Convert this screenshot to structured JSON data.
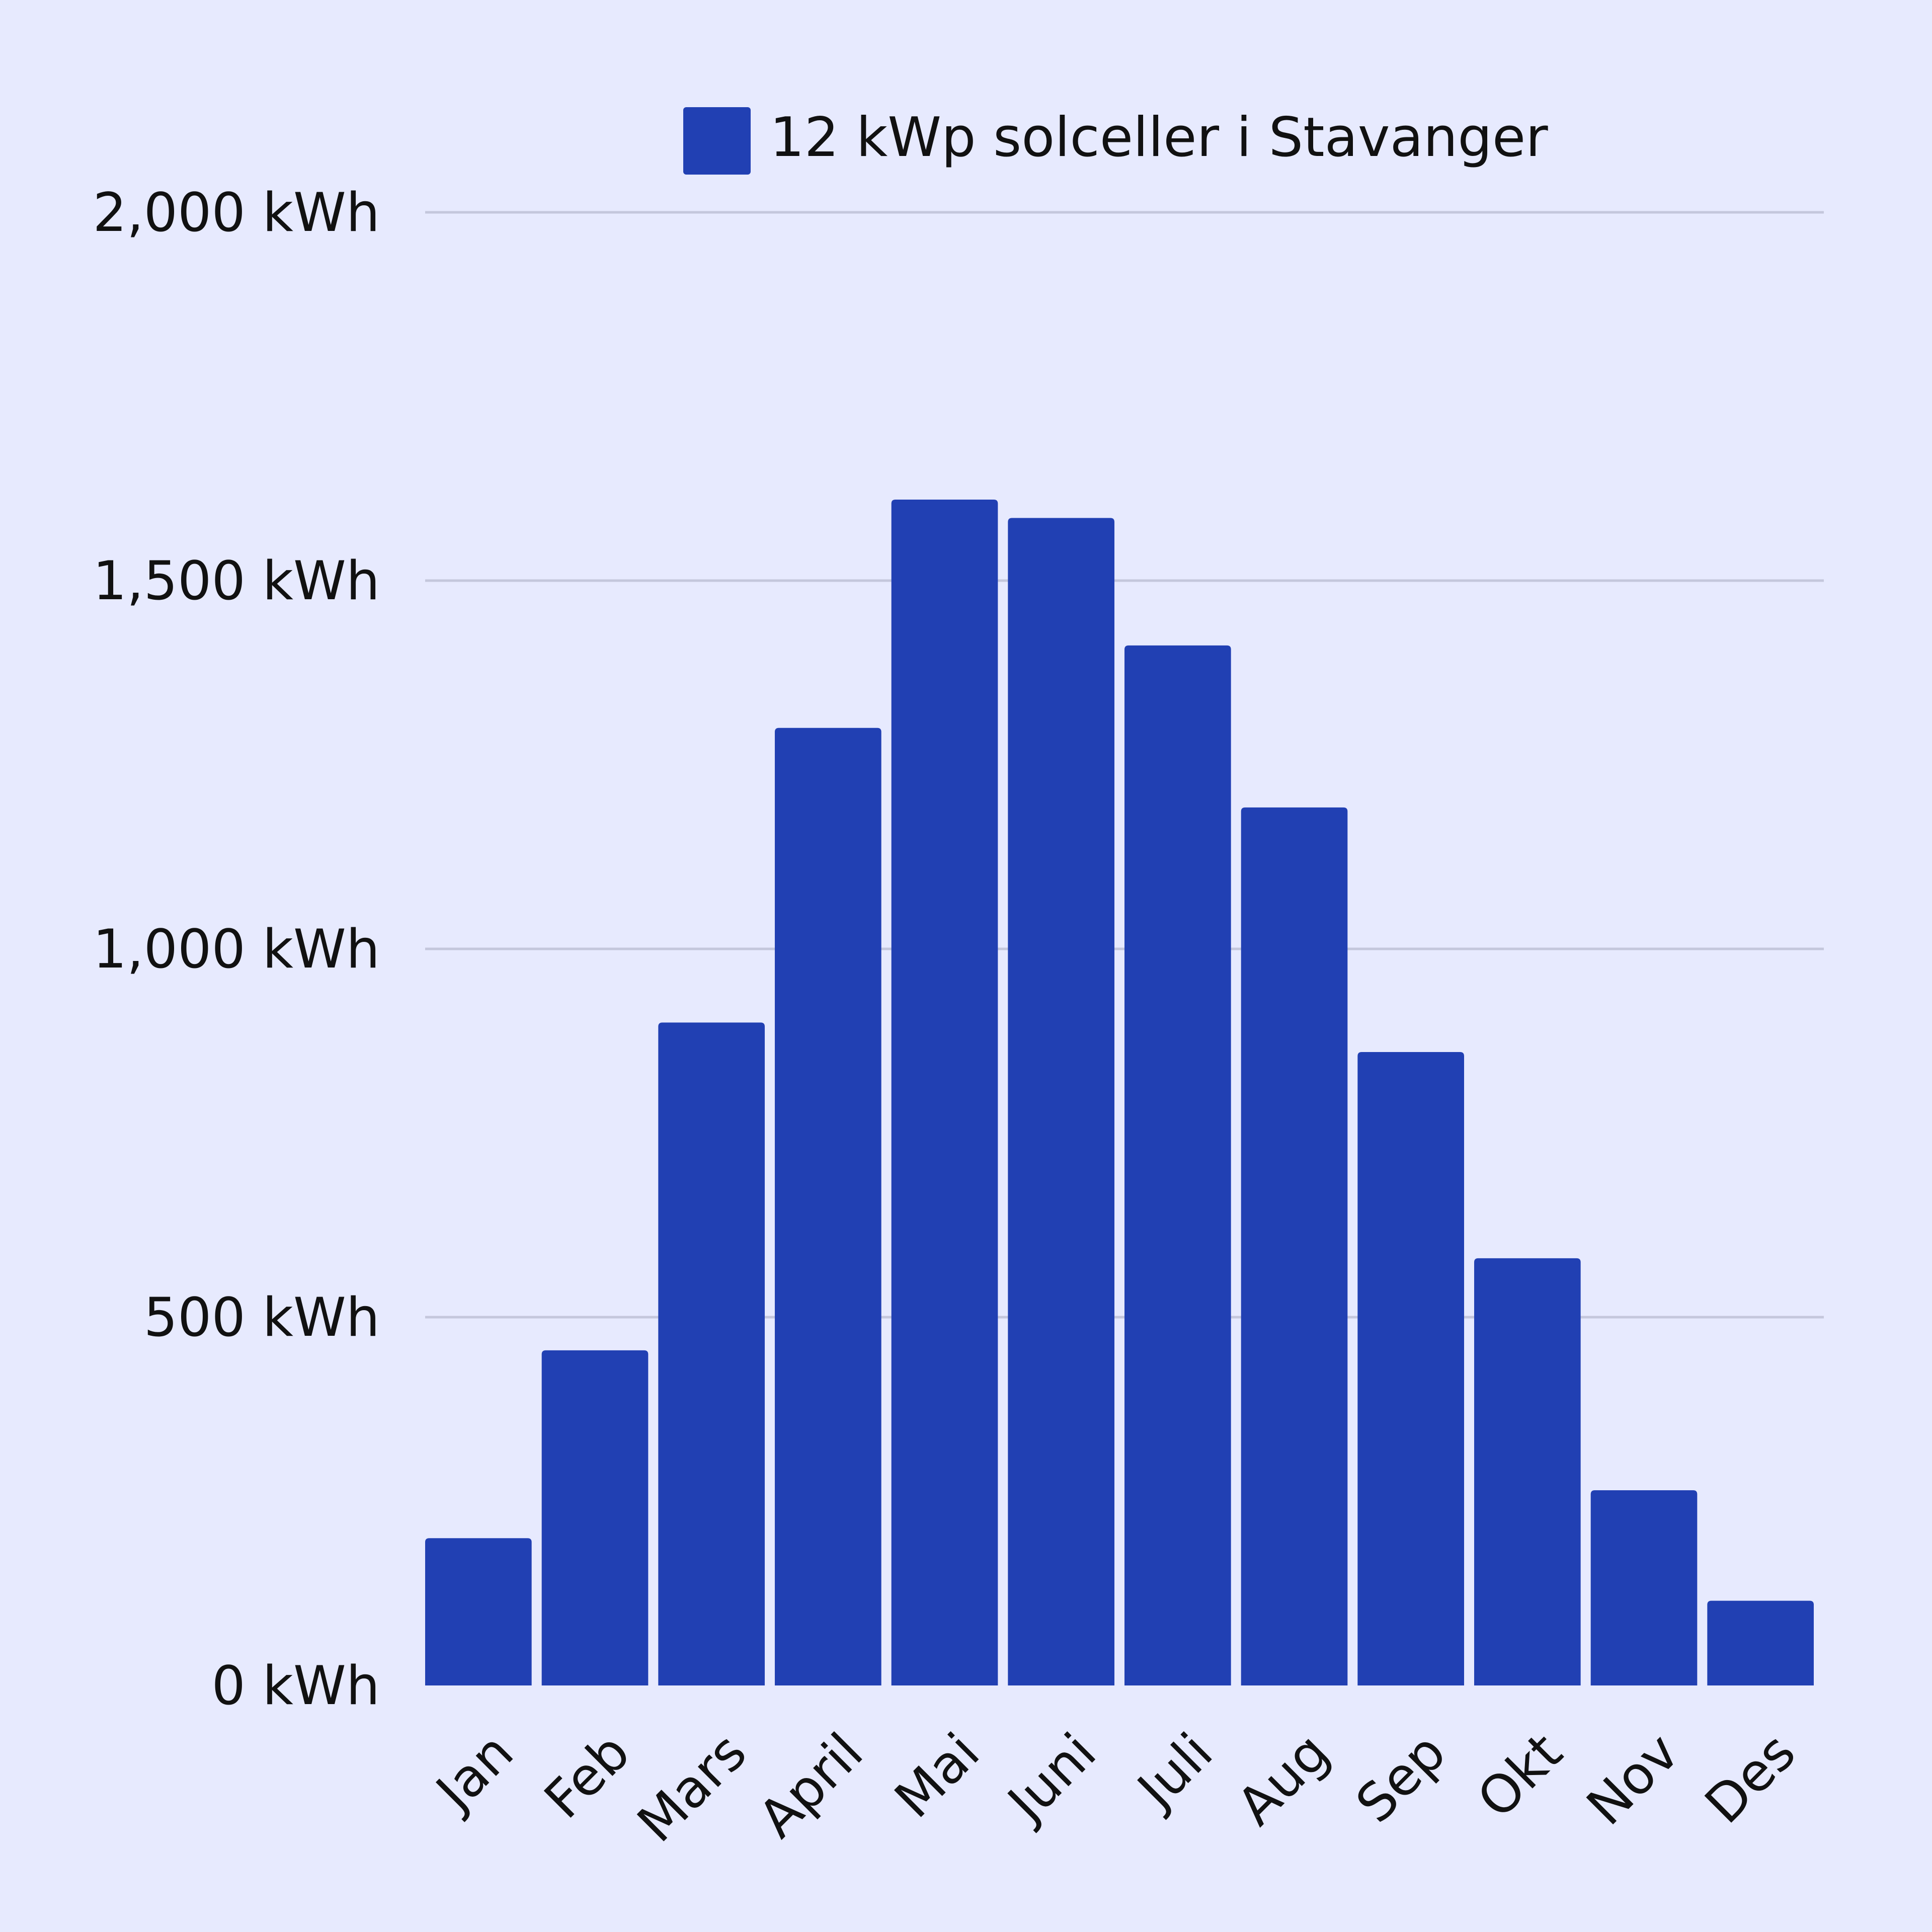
{
  "colors": {
    "background": "#e7eafe",
    "bar": "#2140b3",
    "gridline": "#c4c7dc",
    "text": "#111111"
  },
  "chart_data": {
    "type": "bar",
    "title": "",
    "xlabel": "",
    "ylabel": "",
    "categories": [
      "Jan",
      "Feb",
      "Mars",
      "April",
      "Mai",
      "Juni",
      "Juli",
      "Aug",
      "Sep",
      "Okt",
      "Nov",
      "Des"
    ],
    "series": [
      {
        "name": "12 kWp solceller i Stavanger",
        "values": [
          200,
          455,
          900,
          1300,
          1610,
          1585,
          1412,
          1192,
          860,
          580,
          265,
          115
        ]
      }
    ],
    "ylim": [
      0,
      2000
    ],
    "yticks": [
      0,
      500,
      1000,
      1500,
      2000
    ],
    "ytick_labels": [
      "0 kWh",
      "500 kWh",
      "1,000 kWh",
      "1,500 kWh",
      "2,000 kWh"
    ],
    "grid": true,
    "legend_position": "top"
  }
}
